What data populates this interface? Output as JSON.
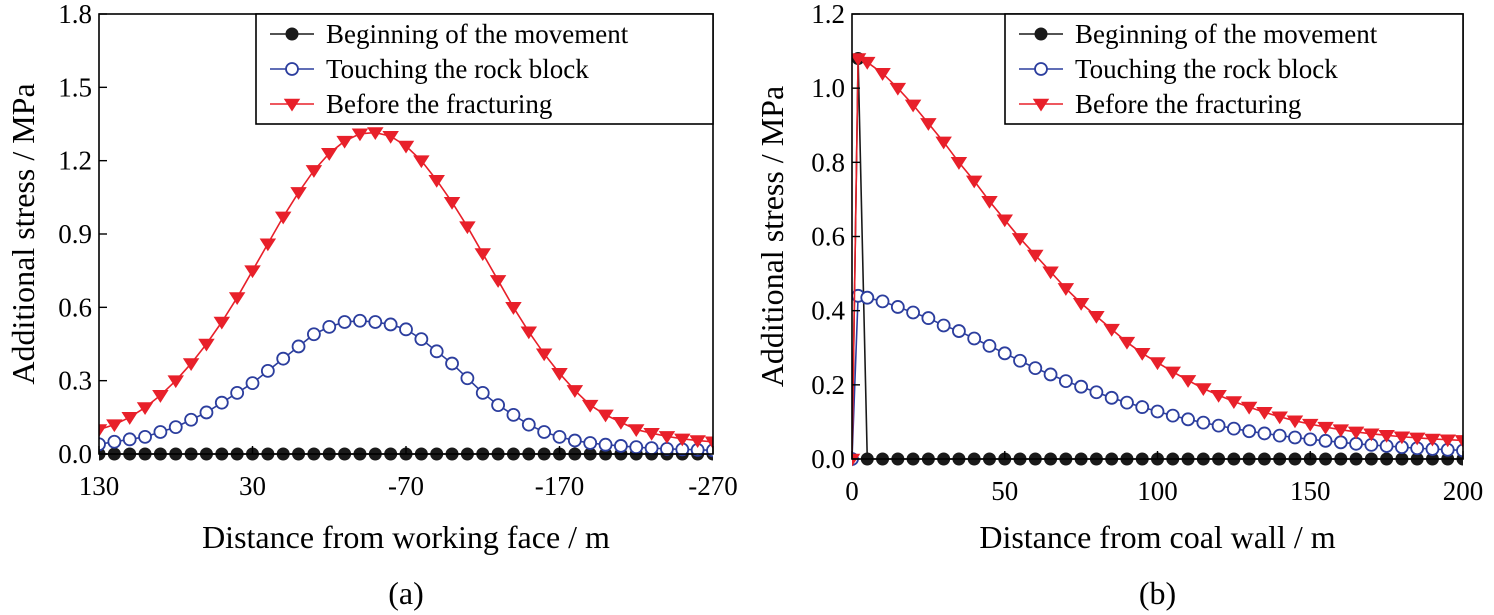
{
  "chart_data": [
    {
      "type": "line",
      "panel_label": "(a)",
      "xlabel": "Distance from working face / m",
      "ylabel": "Additional stress / MPa",
      "xlim": [
        130,
        -270
      ],
      "ylim": [
        0,
        1.8
      ],
      "xticks": [
        "130",
        "30",
        "-70",
        "-170",
        "-270"
      ],
      "yticks": [
        "0.0",
        "0.3",
        "0.6",
        "0.9",
        "1.2",
        "1.5",
        "1.8"
      ],
      "xtick_values": [
        130,
        30,
        -70,
        -170,
        -270
      ],
      "ytick_values": [
        0,
        0.3,
        0.6,
        0.9,
        1.2,
        1.5,
        1.8
      ],
      "legend_position": "top-right",
      "x": [
        130,
        120,
        110,
        100,
        90,
        80,
        70,
        60,
        50,
        40,
        30,
        20,
        10,
        0,
        -10,
        -20,
        -30,
        -40,
        -50,
        -60,
        -70,
        -80,
        -90,
        -100,
        -110,
        -120,
        -130,
        -140,
        -150,
        -160,
        -170,
        -180,
        -190,
        -200,
        -210,
        -220,
        -230,
        -240,
        -250,
        -260,
        -270
      ],
      "series": [
        {
          "name": "Beginning of the movement",
          "marker": "filled-circle",
          "color": "#1a1a1a",
          "values": [
            0,
            0,
            0,
            0,
            0,
            0,
            0,
            0,
            0,
            0,
            0,
            0,
            0,
            0,
            0,
            0,
            0,
            0,
            0,
            0,
            0,
            0,
            0,
            0,
            0,
            0,
            0,
            0,
            0,
            0,
            0,
            0,
            0,
            0,
            0,
            0,
            0,
            0,
            0,
            0,
            0
          ]
        },
        {
          "name": "Touching the rock block",
          "marker": "open-circle",
          "color": "#2c3e9e",
          "values": [
            0.04,
            0.05,
            0.06,
            0.07,
            0.09,
            0.11,
            0.14,
            0.17,
            0.21,
            0.25,
            0.29,
            0.34,
            0.39,
            0.44,
            0.49,
            0.52,
            0.54,
            0.545,
            0.54,
            0.53,
            0.51,
            0.47,
            0.42,
            0.37,
            0.31,
            0.25,
            0.2,
            0.16,
            0.12,
            0.09,
            0.07,
            0.055,
            0.045,
            0.038,
            0.033,
            0.028,
            0.024,
            0.021,
            0.019,
            0.017,
            0.015
          ]
        },
        {
          "name": "Before the fracturing",
          "marker": "filled-triangle-down",
          "color": "#e8202a",
          "values": [
            0.1,
            0.12,
            0.15,
            0.19,
            0.24,
            0.3,
            0.37,
            0.45,
            0.54,
            0.64,
            0.75,
            0.86,
            0.97,
            1.07,
            1.16,
            1.23,
            1.28,
            1.31,
            1.315,
            1.3,
            1.26,
            1.2,
            1.12,
            1.03,
            0.93,
            0.82,
            0.71,
            0.6,
            0.5,
            0.41,
            0.33,
            0.26,
            0.2,
            0.16,
            0.13,
            0.1,
            0.085,
            0.072,
            0.062,
            0.055,
            0.05
          ]
        }
      ]
    },
    {
      "type": "line",
      "panel_label": "(b)",
      "xlabel": "Distance from coal wall / m",
      "ylabel": "Additional stress / MPa",
      "xlim": [
        0,
        200
      ],
      "ylim": [
        0,
        1.2
      ],
      "xticks": [
        "0",
        "50",
        "100",
        "150",
        "200"
      ],
      "yticks": [
        "0.0",
        "0.2",
        "0.4",
        "0.6",
        "0.8",
        "1.0",
        "1.2"
      ],
      "xtick_values": [
        0,
        50,
        100,
        150,
        200
      ],
      "ytick_values": [
        0,
        0.2,
        0.4,
        0.6,
        0.8,
        1.0,
        1.2
      ],
      "legend_position": "top-right",
      "x": [
        0,
        2,
        5,
        10,
        15,
        20,
        25,
        30,
        35,
        40,
        45,
        50,
        55,
        60,
        65,
        70,
        75,
        80,
        85,
        90,
        95,
        100,
        105,
        110,
        115,
        120,
        125,
        130,
        135,
        140,
        145,
        150,
        155,
        160,
        165,
        170,
        175,
        180,
        185,
        190,
        195,
        200
      ],
      "series": [
        {
          "name": "Beginning of the movement",
          "marker": "filled-circle",
          "color": "#1a1a1a",
          "values": [
            0,
            1.08,
            0,
            0,
            0,
            0,
            0,
            0,
            0,
            0,
            0,
            0,
            0,
            0,
            0,
            0,
            0,
            0,
            0,
            0,
            0,
            0,
            0,
            0,
            0,
            0,
            0,
            0,
            0,
            0,
            0,
            0,
            0,
            0,
            0,
            0,
            0,
            0,
            0,
            0,
            0,
            0
          ]
        },
        {
          "name": "Touching the rock block",
          "marker": "open-circle",
          "color": "#2c3e9e",
          "values": [
            0,
            0.44,
            0.435,
            0.425,
            0.41,
            0.395,
            0.38,
            0.36,
            0.345,
            0.325,
            0.305,
            0.285,
            0.265,
            0.245,
            0.228,
            0.21,
            0.195,
            0.18,
            0.165,
            0.152,
            0.14,
            0.128,
            0.117,
            0.107,
            0.098,
            0.09,
            0.082,
            0.075,
            0.069,
            0.063,
            0.058,
            0.053,
            0.049,
            0.045,
            0.041,
            0.038,
            0.035,
            0.032,
            0.029,
            0.027,
            0.025,
            0.023
          ]
        },
        {
          "name": "Before the fracturing",
          "marker": "filled-triangle-down",
          "color": "#e8202a",
          "values": [
            0,
            1.08,
            1.07,
            1.04,
            1.0,
            0.955,
            0.905,
            0.855,
            0.8,
            0.75,
            0.695,
            0.645,
            0.595,
            0.55,
            0.505,
            0.46,
            0.42,
            0.385,
            0.35,
            0.315,
            0.285,
            0.26,
            0.235,
            0.212,
            0.19,
            0.172,
            0.155,
            0.14,
            0.126,
            0.114,
            0.103,
            0.094,
            0.086,
            0.079,
            0.073,
            0.068,
            0.064,
            0.06,
            0.057,
            0.054,
            0.052,
            0.05
          ]
        }
      ]
    }
  ]
}
